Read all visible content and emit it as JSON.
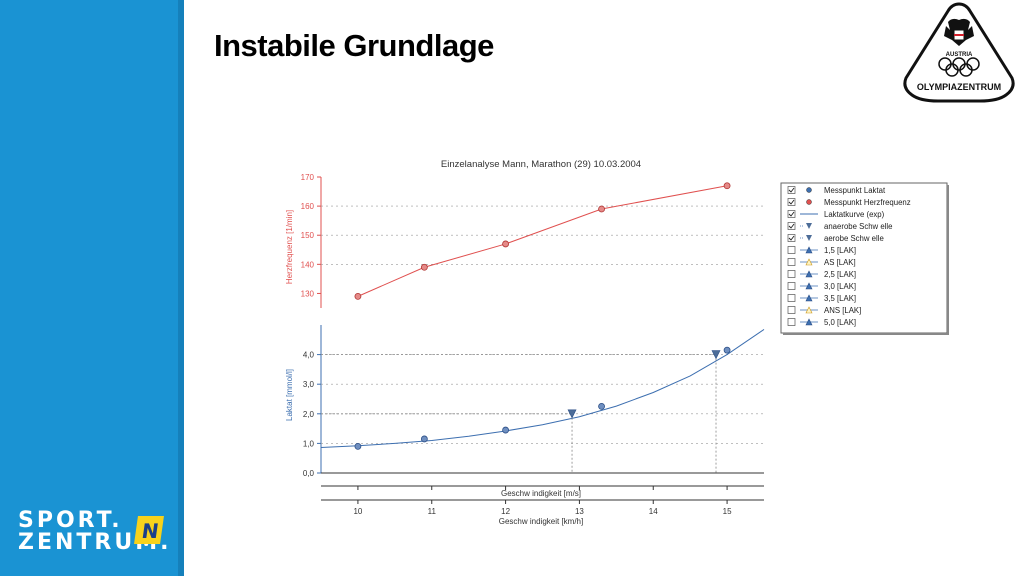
{
  "slide": {
    "title": "Instabile Grundlage",
    "logo_sport_line1": "SPORT.",
    "logo_sport_line2": "ZENTRUM.",
    "logo_sport_badge": "N",
    "olympia_label": "OLYMPIAZENTRUM",
    "olympia_country": "AUSTRIA"
  },
  "colors": {
    "sidebar": "#1a93d3",
    "heart_rate": "#e0504f",
    "lactate": "#3d6fb0",
    "grid": "#999999"
  },
  "chart_data": {
    "type": "line",
    "title": "Einzelanalyse Mann, Marathon (29) 10.03.2004",
    "xlabel_top": "Geschw indigkeit [m/s]",
    "xlabel": "Geschw indigkeit [km/h]",
    "xlim": [
      9.5,
      15.5
    ],
    "x_ticks": [
      10,
      11,
      12,
      13,
      14,
      15
    ],
    "x_tick_labels": [
      "10",
      "11",
      "12",
      "13",
      "14",
      "15"
    ],
    "hr_axis": {
      "label": "Herzfrequenz [1/min]",
      "ticks": [
        130,
        140,
        150,
        160,
        170
      ],
      "tick_labels": [
        "130",
        "140",
        "150",
        "160",
        "170"
      ],
      "range": [
        125,
        170
      ]
    },
    "lactate_axis": {
      "label": "Laktat [mmol/l]",
      "ticks": [
        0,
        1,
        2,
        3,
        4
      ],
      "tick_labels": [
        "0,0",
        "1,0",
        "2,0",
        "3,0",
        "4,0"
      ],
      "range": [
        0,
        5
      ]
    },
    "series": [
      {
        "name": "Messpunkt Herzfrequenz",
        "x": [
          10.0,
          10.9,
          12.0,
          13.3,
          15.0
        ],
        "y": [
          129,
          139,
          147,
          159,
          167
        ]
      },
      {
        "name": "Messpunkt Laktat",
        "x": [
          10.0,
          10.9,
          12.0,
          13.3,
          15.0
        ],
        "y": [
          0.9,
          1.15,
          1.45,
          2.25,
          4.15
        ]
      },
      {
        "name": "Laktatkurve (exp)",
        "x": [
          9.5,
          10.0,
          10.5,
          11.0,
          11.5,
          12.0,
          12.5,
          13.0,
          13.5,
          14.0,
          14.5,
          15.0,
          15.5
        ],
        "y": [
          0.86,
          0.92,
          1.0,
          1.1,
          1.24,
          1.42,
          1.63,
          1.9,
          2.26,
          2.72,
          3.28,
          4.0,
          4.85
        ]
      }
    ],
    "thresholds": [
      {
        "name": "aerobe Schwelle",
        "x": 12.9,
        "y": 2.0
      },
      {
        "name": "anaerobe Schwelle",
        "x": 14.85,
        "y": 4.0
      }
    ],
    "legend": {
      "placement": "right",
      "items": [
        {
          "label": "Messpunkt Laktat",
          "checked": true,
          "marker": "circle",
          "color": "#3d6fb0"
        },
        {
          "label": "Messpunkt Herzfrequenz",
          "checked": true,
          "marker": "circle",
          "color": "#e0504f"
        },
        {
          "label": "Laktatkurve (exp)",
          "checked": true,
          "marker": "line",
          "color": "#3d6fb0"
        },
        {
          "label": "anaerobe Schw elle",
          "checked": true,
          "marker": "triangle-down",
          "color": "#3d6fb0"
        },
        {
          "label": "aerobe Schw elle",
          "checked": true,
          "marker": "triangle-down",
          "color": "#3d6fb0"
        },
        {
          "label": "1,5 [LAK]",
          "checked": false,
          "marker": "triangle-up",
          "color": "#3d6fb0"
        },
        {
          "label": "AS [LAK]",
          "checked": false,
          "marker": "triangle-up-hollow",
          "color": "#e0b030"
        },
        {
          "label": "2,5 [LAK]",
          "checked": false,
          "marker": "triangle-up",
          "color": "#3d6fb0"
        },
        {
          "label": "3,0 [LAK]",
          "checked": false,
          "marker": "triangle-up",
          "color": "#3d6fb0"
        },
        {
          "label": "3,5 [LAK]",
          "checked": false,
          "marker": "triangle-up",
          "color": "#3d6fb0"
        },
        {
          "label": "ANS [LAK]",
          "checked": false,
          "marker": "triangle-up-hollow",
          "color": "#e0b030"
        },
        {
          "label": "5,0 [LAK]",
          "checked": false,
          "marker": "triangle-up",
          "color": "#3d6fb0"
        }
      ]
    }
  }
}
